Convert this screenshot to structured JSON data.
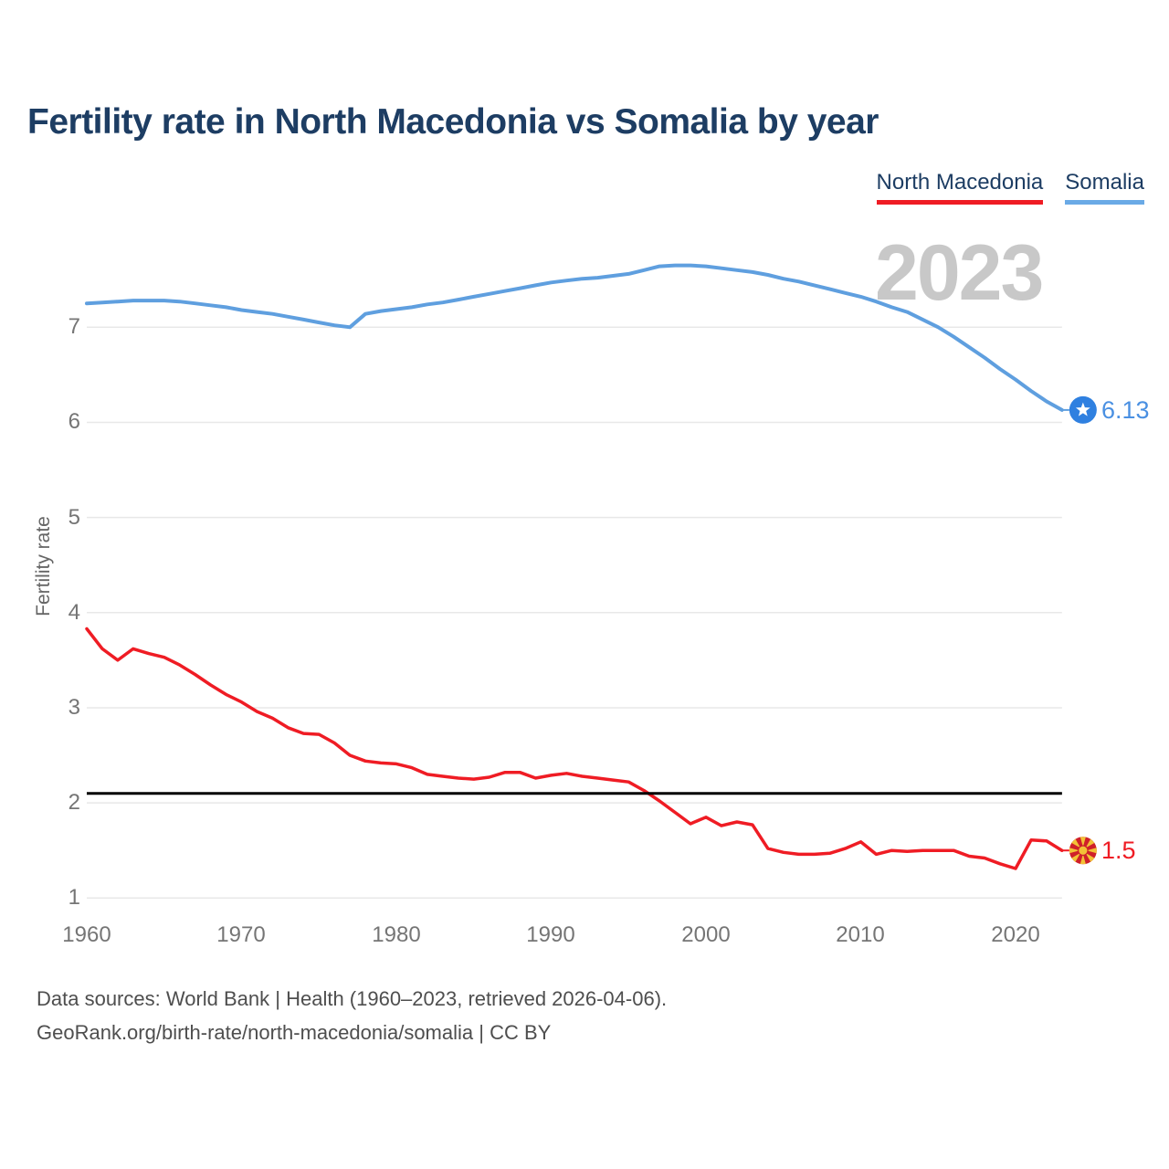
{
  "title": "Fertility rate in North Macedonia vs Somalia by year",
  "legend": [
    {
      "label": "North Macedonia",
      "color": "#ef1c24"
    },
    {
      "label": "Somalia",
      "color": "#6aaae6"
    }
  ],
  "watermark_year": "2023",
  "y_axis_title": "Fertility rate",
  "chart_data": {
    "type": "line",
    "title": "Fertility rate in North Macedonia vs Somalia by year",
    "xlabel": "",
    "ylabel": "Fertility rate",
    "xlim": [
      1960,
      2023
    ],
    "ylim": [
      1,
      7.8
    ],
    "x_ticks": [
      1960,
      1970,
      1980,
      1990,
      2000,
      2010,
      2020
    ],
    "y_ticks": [
      1,
      2,
      3,
      4,
      5,
      6,
      7
    ],
    "grid": "horizontal",
    "legend_position": "top-right",
    "reference_line": {
      "value": 2.1,
      "color": "#000000"
    },
    "x": [
      1960,
      1961,
      1962,
      1963,
      1964,
      1965,
      1966,
      1967,
      1968,
      1969,
      1970,
      1971,
      1972,
      1973,
      1974,
      1975,
      1976,
      1977,
      1978,
      1979,
      1980,
      1981,
      1982,
      1983,
      1984,
      1985,
      1986,
      1987,
      1988,
      1989,
      1990,
      1991,
      1992,
      1993,
      1994,
      1995,
      1996,
      1997,
      1998,
      1999,
      2000,
      2001,
      2002,
      2003,
      2004,
      2005,
      2006,
      2007,
      2008,
      2009,
      2010,
      2011,
      2012,
      2013,
      2014,
      2015,
      2016,
      2017,
      2018,
      2019,
      2020,
      2021,
      2022,
      2023
    ],
    "series": [
      {
        "name": "North Macedonia",
        "color": "#ef1c24",
        "line_width": 3.5,
        "marker": "north-macedonia-flag",
        "marker_colors": {
          "red": "#cf202a",
          "yellow": "#f2c237"
        },
        "end_label": "1.5",
        "end_value": 1.5,
        "values": [
          3.83,
          3.62,
          3.5,
          3.62,
          3.57,
          3.53,
          3.45,
          3.35,
          3.24,
          3.14,
          3.06,
          2.96,
          2.89,
          2.79,
          2.73,
          2.72,
          2.63,
          2.5,
          2.44,
          2.42,
          2.41,
          2.37,
          2.3,
          2.28,
          2.26,
          2.25,
          2.27,
          2.32,
          2.32,
          2.26,
          2.29,
          2.31,
          2.28,
          2.26,
          2.24,
          2.22,
          2.13,
          2.02,
          1.9,
          1.78,
          1.85,
          1.76,
          1.8,
          1.77,
          1.52,
          1.48,
          1.46,
          1.46,
          1.47,
          1.52,
          1.59,
          1.46,
          1.5,
          1.49,
          1.5,
          1.5,
          1.5,
          1.44,
          1.42,
          1.36,
          1.31,
          1.61,
          1.6,
          1.5
        ]
      },
      {
        "name": "Somalia",
        "color": "#5f9fdf",
        "line_width": 4,
        "marker": "somalia-flag",
        "marker_colors": {
          "blue": "#2f80e0",
          "white": "#ffffff"
        },
        "end_label": "6.13",
        "end_value": 6.13,
        "values": [
          7.25,
          7.26,
          7.27,
          7.28,
          7.28,
          7.28,
          7.27,
          7.25,
          7.23,
          7.21,
          7.18,
          7.16,
          7.14,
          7.11,
          7.08,
          7.05,
          7.02,
          7.0,
          7.14,
          7.17,
          7.19,
          7.21,
          7.24,
          7.26,
          7.29,
          7.32,
          7.35,
          7.38,
          7.41,
          7.44,
          7.47,
          7.49,
          7.51,
          7.52,
          7.54,
          7.56,
          7.6,
          7.64,
          7.65,
          7.65,
          7.64,
          7.62,
          7.6,
          7.58,
          7.55,
          7.51,
          7.48,
          7.44,
          7.4,
          7.36,
          7.32,
          7.27,
          7.21,
          7.16,
          7.08,
          7.0,
          6.9,
          6.79,
          6.68,
          6.56,
          6.45,
          6.33,
          6.22,
          6.13
        ]
      }
    ]
  },
  "footer": {
    "line1": "Data sources: World Bank | Health (1960–2023, retrieved 2026-04-06).",
    "line2": "GeoRank.org/birth-rate/north-macedonia/somalia | CC BY"
  },
  "colors": {
    "title": "#1d3d63",
    "watermark": "#c8c8c8",
    "grid": "#e8e8e8",
    "axis_text": "#757575",
    "footer_text": "#4e4e4e",
    "reference_line": "#000000",
    "north_macedonia_line": "#ef1c24",
    "somalia_line": "#5f9fdf",
    "somalia_end_label": "#4a90e2"
  }
}
